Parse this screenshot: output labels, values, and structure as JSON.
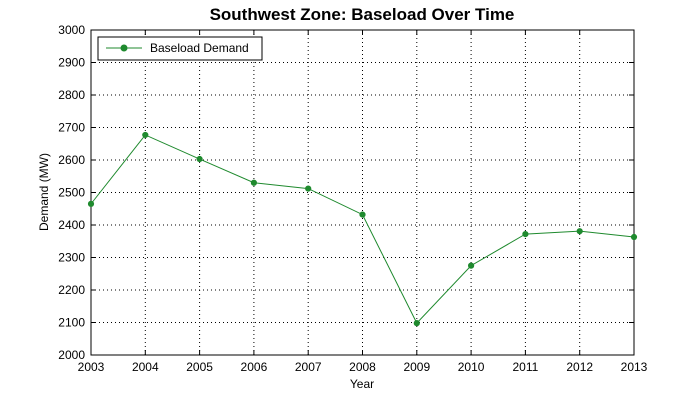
{
  "chart_data": {
    "type": "line",
    "title": "Southwest Zone: Baseload Over Time",
    "xlabel": "Year",
    "ylabel": "Demand (MW)",
    "x": [
      2003,
      2004,
      2005,
      2006,
      2007,
      2008,
      2009,
      2010,
      2011,
      2012,
      2013
    ],
    "xlim": [
      2003,
      2013
    ],
    "ylim": [
      2000,
      3000
    ],
    "yticks": [
      2000,
      2100,
      2200,
      2300,
      2400,
      2500,
      2600,
      2700,
      2800,
      2900,
      3000
    ],
    "grid": true,
    "legend_position": "top-left",
    "series": [
      {
        "name": "Baseload Demand",
        "color": "#1f8a2e",
        "marker": "circle",
        "values": [
          2465,
          2677,
          2603,
          2530,
          2512,
          2432,
          2098,
          2275,
          2372,
          2381,
          2363
        ]
      }
    ]
  }
}
